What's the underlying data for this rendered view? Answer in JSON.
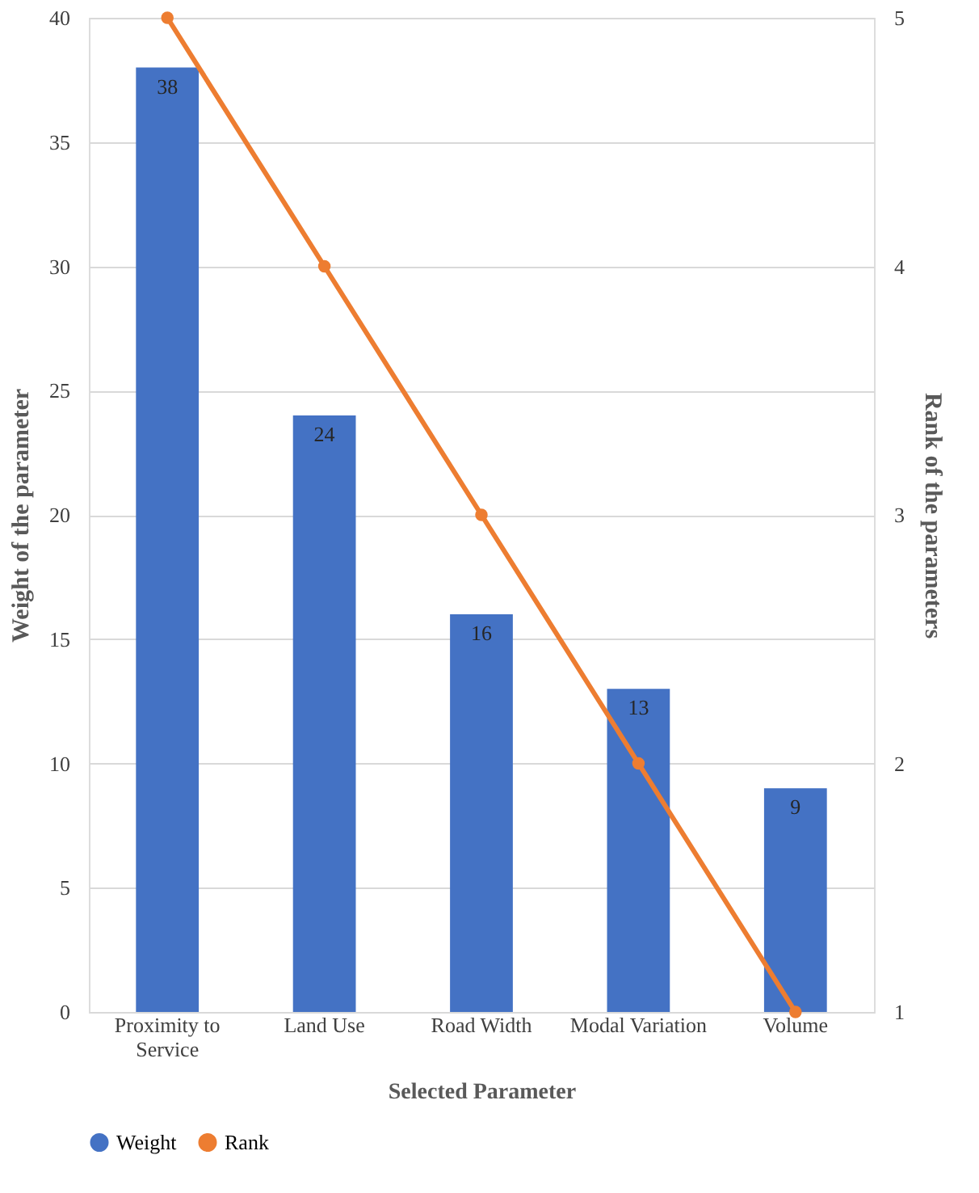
{
  "chart_data": {
    "type": "bar",
    "xlabel": "Selected Parameter",
    "ylabel": "Weight of the parameter",
    "y2label": "Rank of the parameters",
    "categories": [
      "Proximity to Service",
      "Land Use",
      "Road Width",
      "Modal Variation",
      "Volume"
    ],
    "series": [
      {
        "name": "Weight",
        "color": "#4472c4",
        "values": [
          38,
          24,
          16,
          13,
          9
        ],
        "data_labels": true
      },
      {
        "name": "Rank",
        "type": "line",
        "axis": "y2",
        "color": "#ed7d31",
        "values": [
          5,
          4,
          3,
          2,
          1
        ],
        "marker": "circle",
        "line_style": "solid"
      }
    ],
    "ylim": [
      0,
      40
    ],
    "yticks": [
      0,
      5,
      10,
      15,
      20,
      25,
      30,
      35,
      40
    ],
    "y2lim": [
      1,
      5
    ],
    "y2ticks": [
      1,
      2,
      3,
      4,
      5
    ],
    "grid": "y",
    "legend": "bottom"
  }
}
